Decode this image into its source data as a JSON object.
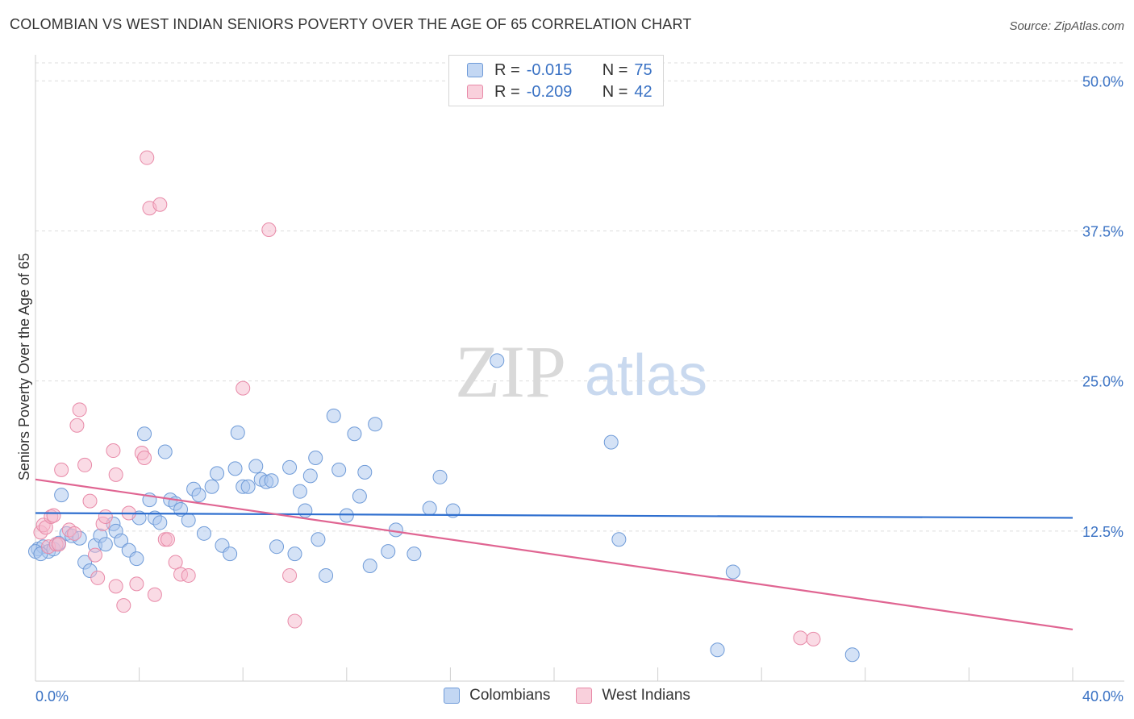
{
  "header": {
    "title": "COLOMBIAN VS WEST INDIAN SENIORS POVERTY OVER THE AGE OF 65 CORRELATION CHART",
    "source": "Source: ZipAtlas.com"
  },
  "watermark": {
    "zip": "ZIP",
    "atlas": "atlas"
  },
  "legend": {
    "colombians": {
      "r_label": "R =",
      "r_value": "-0.015",
      "n_label": "N =",
      "n_value": "75"
    },
    "west_indians": {
      "r_label": "R =",
      "r_value": "-0.209",
      "n_label": "N =",
      "n_value": "42"
    }
  },
  "bottom_legend": {
    "colombians": "Colombians",
    "west_indians": "West Indians"
  },
  "colors": {
    "blue_fill": "#a9c6ee",
    "blue_stroke": "#6f9bd8",
    "blue_line": "#2f6fcf",
    "pink_fill": "#f5b8cb",
    "pink_stroke": "#e88aa8",
    "pink_line": "#e06592",
    "tick_label": "#3a72c4",
    "grid": "#dddddd"
  },
  "chart_data": {
    "type": "scatter",
    "title": "COLOMBIAN VS WEST INDIAN SENIORS POVERTY OVER THE AGE OF 65 CORRELATION CHART",
    "xlabel": "",
    "ylabel": "Seniors Poverty Over the Age of 65",
    "xlim": [
      0,
      40
    ],
    "ylim": [
      0,
      51.5
    ],
    "x_tick_labels": [
      "0.0%",
      "40.0%"
    ],
    "y_ticks": [
      12.5,
      25.0,
      37.5,
      50.0
    ],
    "y_tick_labels": [
      "12.5%",
      "25.0%",
      "37.5%",
      "50.0%"
    ],
    "grid": true,
    "series": [
      {
        "name": "Colombians",
        "color": "#a9c6ee",
        "trend": {
          "x": [
            0,
            40
          ],
          "y": [
            14.0,
            13.6
          ]
        },
        "points": [
          [
            0.1,
            11.0
          ],
          [
            0.3,
            11.2
          ],
          [
            0.5,
            10.8
          ],
          [
            0.7,
            11.0
          ],
          [
            0.9,
            11.5
          ],
          [
            1.0,
            15.5
          ],
          [
            1.2,
            12.3
          ],
          [
            1.4,
            12.1
          ],
          [
            1.9,
            9.9
          ],
          [
            2.1,
            9.2
          ],
          [
            2.3,
            11.3
          ],
          [
            2.5,
            12.1
          ],
          [
            2.7,
            11.4
          ],
          [
            3.0,
            13.1
          ],
          [
            3.1,
            12.5
          ],
          [
            3.3,
            11.7
          ],
          [
            3.6,
            10.9
          ],
          [
            3.9,
            10.2
          ],
          [
            4.0,
            13.6
          ],
          [
            4.2,
            20.6
          ],
          [
            4.4,
            15.1
          ],
          [
            4.6,
            13.6
          ],
          [
            4.8,
            13.2
          ],
          [
            5.0,
            19.1
          ],
          [
            5.2,
            15.1
          ],
          [
            5.4,
            14.8
          ],
          [
            5.6,
            14.3
          ],
          [
            5.9,
            13.4
          ],
          [
            6.1,
            16.0
          ],
          [
            6.3,
            15.5
          ],
          [
            6.5,
            12.3
          ],
          [
            6.8,
            16.2
          ],
          [
            7.0,
            17.3
          ],
          [
            7.2,
            11.3
          ],
          [
            7.5,
            10.6
          ],
          [
            7.7,
            17.7
          ],
          [
            7.8,
            20.7
          ],
          [
            8.0,
            16.2
          ],
          [
            8.2,
            16.2
          ],
          [
            8.5,
            17.9
          ],
          [
            8.7,
            16.8
          ],
          [
            8.9,
            16.6
          ],
          [
            9.1,
            16.7
          ],
          [
            9.3,
            11.2
          ],
          [
            9.8,
            17.8
          ],
          [
            10.0,
            10.6
          ],
          [
            10.2,
            15.8
          ],
          [
            10.4,
            14.2
          ],
          [
            10.6,
            17.1
          ],
          [
            10.8,
            18.6
          ],
          [
            10.9,
            11.8
          ],
          [
            11.2,
            8.8
          ],
          [
            11.5,
            22.1
          ],
          [
            11.7,
            17.6
          ],
          [
            12.0,
            13.8
          ],
          [
            12.3,
            20.6
          ],
          [
            12.5,
            15.4
          ],
          [
            12.7,
            17.4
          ],
          [
            12.9,
            9.6
          ],
          [
            13.1,
            21.4
          ],
          [
            13.6,
            10.8
          ],
          [
            13.9,
            12.6
          ],
          [
            14.6,
            10.6
          ],
          [
            15.2,
            14.4
          ],
          [
            15.6,
            17.0
          ],
          [
            16.1,
            14.2
          ],
          [
            17.8,
            26.7
          ],
          [
            22.2,
            19.9
          ],
          [
            22.5,
            11.8
          ],
          [
            26.3,
            2.6
          ],
          [
            26.9,
            9.1
          ],
          [
            31.5,
            2.2
          ],
          [
            0.0,
            10.8
          ],
          [
            0.2,
            10.6
          ],
          [
            1.7,
            11.9
          ]
        ]
      },
      {
        "name": "West Indians",
        "color": "#f5b8cb",
        "trend": {
          "x": [
            0,
            40
          ],
          "y": [
            16.8,
            4.3
          ]
        },
        "points": [
          [
            0.2,
            12.4
          ],
          [
            0.3,
            13.0
          ],
          [
            0.4,
            12.8
          ],
          [
            0.5,
            11.2
          ],
          [
            0.6,
            13.7
          ],
          [
            0.7,
            13.8
          ],
          [
            0.8,
            11.4
          ],
          [
            0.9,
            11.4
          ],
          [
            1.0,
            17.6
          ],
          [
            1.3,
            12.6
          ],
          [
            1.5,
            12.3
          ],
          [
            1.6,
            21.3
          ],
          [
            1.7,
            22.6
          ],
          [
            1.9,
            18.0
          ],
          [
            2.1,
            15.0
          ],
          [
            2.3,
            10.5
          ],
          [
            2.4,
            8.6
          ],
          [
            2.6,
            13.1
          ],
          [
            2.7,
            13.7
          ],
          [
            3.0,
            19.2
          ],
          [
            3.1,
            17.2
          ],
          [
            3.1,
            7.9
          ],
          [
            3.4,
            6.3
          ],
          [
            3.6,
            14.0
          ],
          [
            3.9,
            8.1
          ],
          [
            4.1,
            19.0
          ],
          [
            4.2,
            18.6
          ],
          [
            4.3,
            43.6
          ],
          [
            4.4,
            39.4
          ],
          [
            4.6,
            7.2
          ],
          [
            4.8,
            39.7
          ],
          [
            5.0,
            11.8
          ],
          [
            5.1,
            11.8
          ],
          [
            5.4,
            9.9
          ],
          [
            5.6,
            8.9
          ],
          [
            5.9,
            8.8
          ],
          [
            8.0,
            24.4
          ],
          [
            9.0,
            37.6
          ],
          [
            9.8,
            8.8
          ],
          [
            10.0,
            5.0
          ],
          [
            29.5,
            3.6
          ],
          [
            30.0,
            3.5
          ]
        ]
      }
    ]
  }
}
